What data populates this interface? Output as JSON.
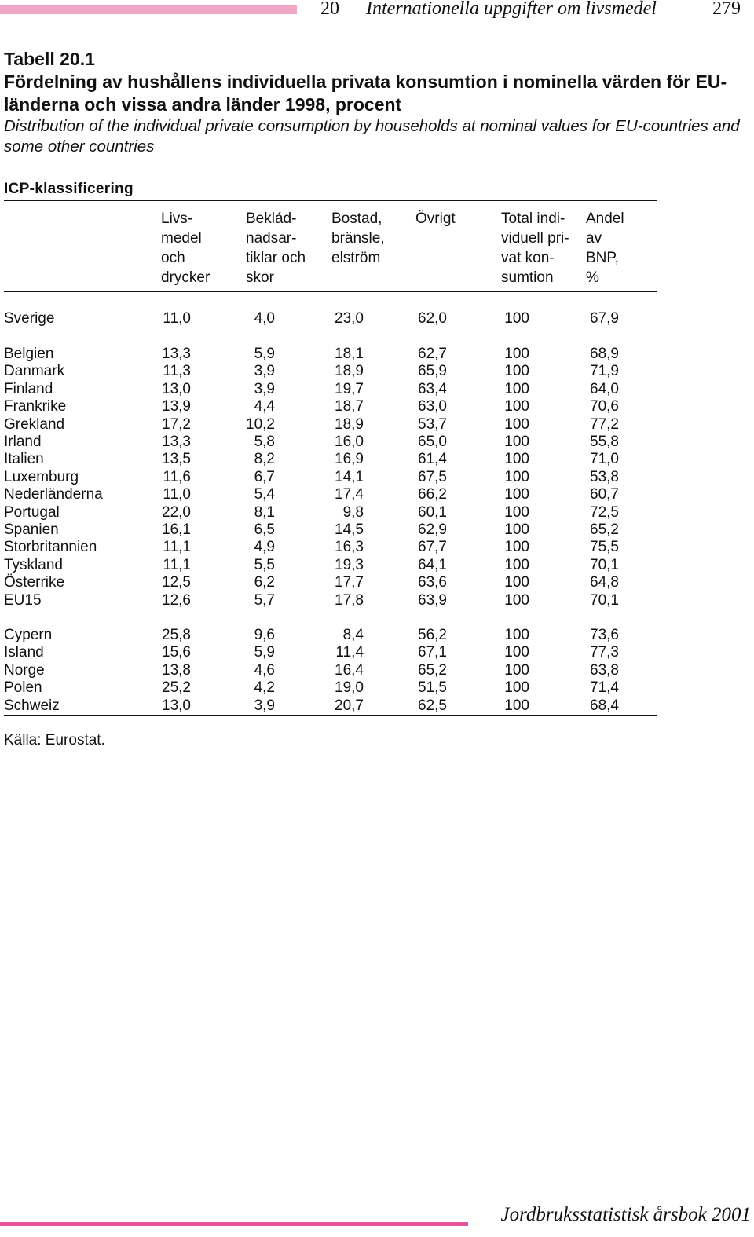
{
  "header": {
    "chapter_number": "20",
    "chapter_title": "Internationella uppgifter om livsmedel",
    "page_number": "279"
  },
  "table": {
    "number": "Tabell 20.1",
    "title_sv": "Fördelning av hushållens individuella privata konsumtion i nominella värden för EU-länderna och vissa andra länder 1998, procent",
    "title_en": "Distribution of the individual private consumption by households at nominal values for EU-countries and some other countries",
    "section_label": "ICP-klassificering",
    "columns": [
      "Livs-\nmedel\noch\ndrycker",
      "Beklád-\nnadsar-\ntiklar och\nskor",
      "Bostad,\nbränsle,\nelström",
      "Övrigt",
      "Total indi-\nviduell pri-\nvat kon-\nsumtion",
      "Andel\nav\nBNP,\n%"
    ],
    "groups": [
      [
        {
          "country": "Sverige",
          "values": [
            "11,0",
            "4,0",
            "23,0",
            "62,0",
            "100",
            "67,9"
          ]
        }
      ],
      [
        {
          "country": "Belgien",
          "values": [
            "13,3",
            "5,9",
            "18,1",
            "62,7",
            "100",
            "68,9"
          ]
        },
        {
          "country": "Danmark",
          "values": [
            "11,3",
            "3,9",
            "18,9",
            "65,9",
            "100",
            "71,9"
          ]
        },
        {
          "country": "Finland",
          "values": [
            "13,0",
            "3,9",
            "19,7",
            "63,4",
            "100",
            "64,0"
          ]
        },
        {
          "country": "Frankrike",
          "values": [
            "13,9",
            "4,4",
            "18,7",
            "63,0",
            "100",
            "70,6"
          ]
        },
        {
          "country": "Grekland",
          "values": [
            "17,2",
            "10,2",
            "18,9",
            "53,7",
            "100",
            "77,2"
          ]
        },
        {
          "country": "Irland",
          "values": [
            "13,3",
            "5,8",
            "16,0",
            "65,0",
            "100",
            "55,8"
          ]
        },
        {
          "country": "Italien",
          "values": [
            "13,5",
            "8,2",
            "16,9",
            "61,4",
            "100",
            "71,0"
          ]
        },
        {
          "country": "Luxemburg",
          "values": [
            "11,6",
            "6,7",
            "14,1",
            "67,5",
            "100",
            "53,8"
          ]
        },
        {
          "country": "Nederländerna",
          "values": [
            "11,0",
            "5,4",
            "17,4",
            "66,2",
            "100",
            "60,7"
          ]
        },
        {
          "country": "Portugal",
          "values": [
            "22,0",
            "8,1",
            "9,8",
            "60,1",
            "100",
            "72,5"
          ]
        },
        {
          "country": "Spanien",
          "values": [
            "16,1",
            "6,5",
            "14,5",
            "62,9",
            "100",
            "65,2"
          ]
        },
        {
          "country": "Storbritannien",
          "values": [
            "11,1",
            "4,9",
            "16,3",
            "67,7",
            "100",
            "75,5"
          ]
        },
        {
          "country": "Tyskland",
          "values": [
            "11,1",
            "5,5",
            "19,3",
            "64,1",
            "100",
            "70,1"
          ]
        },
        {
          "country": "Österrike",
          "values": [
            "12,5",
            "6,2",
            "17,7",
            "63,6",
            "100",
            "64,8"
          ]
        },
        {
          "country": "EU15",
          "values": [
            "12,6",
            "5,7",
            "17,8",
            "63,9",
            "100",
            "70,1"
          ]
        }
      ],
      [
        {
          "country": "Cypern",
          "values": [
            "25,8",
            "9,6",
            "8,4",
            "56,2",
            "100",
            "73,6"
          ]
        },
        {
          "country": "Island",
          "values": [
            "15,6",
            "5,9",
            "11,4",
            "67,1",
            "100",
            "77,3"
          ]
        },
        {
          "country": "Norge",
          "values": [
            "13,8",
            "4,6",
            "16,4",
            "65,2",
            "100",
            "63,8"
          ]
        },
        {
          "country": "Polen",
          "values": [
            "25,2",
            "4,2",
            "19,0",
            "51,5",
            "100",
            "71,4"
          ]
        },
        {
          "country": "Schweiz",
          "values": [
            "13,0",
            "3,9",
            "20,7",
            "62,5",
            "100",
            "68,4"
          ]
        }
      ]
    ],
    "source": "Källa: Eurostat."
  },
  "footer": {
    "title": "Jordbruksstatistisk årsbok 2001"
  }
}
